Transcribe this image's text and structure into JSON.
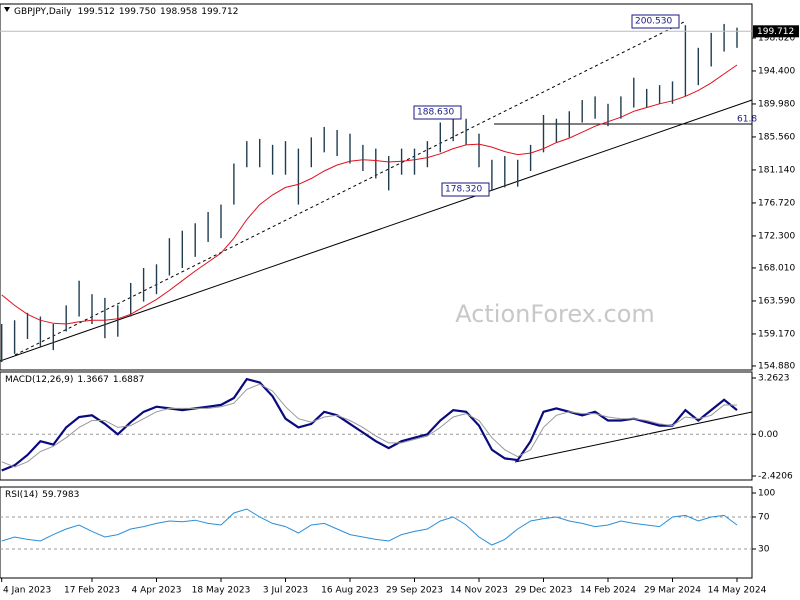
{
  "chart_data": [
    {
      "type": "ohlc",
      "title": "GBPJPY,Daily",
      "quote": [
        {
          "value": 199.512,
          "label": "199.512"
        },
        {
          "value": 199.75,
          "label": "199.750"
        },
        {
          "value": 198.958,
          "label": "198.958"
        },
        {
          "value": 199.712,
          "label": "199.712"
        }
      ],
      "categories": [
        "4 Jan 2023",
        null,
        null,
        null,
        null,
        null,
        null,
        "17 Feb 2023",
        null,
        null,
        null,
        null,
        "4 Apr 2023",
        null,
        null,
        null,
        null,
        "18 May 2023",
        null,
        null,
        null,
        null,
        "3 Jul 2023",
        null,
        null,
        null,
        null,
        "16 Aug 2023",
        null,
        null,
        null,
        null,
        "29 Sep 2023",
        null,
        null,
        null,
        null,
        "14 Nov 2023",
        null,
        null,
        null,
        null,
        "29 Dec 2023",
        null,
        null,
        null,
        null,
        "14 Feb 2024",
        null,
        null,
        null,
        null,
        "29 Mar 2024",
        null,
        null,
        null,
        null,
        "14 May 2024"
      ],
      "high": [
        160.5,
        161.0,
        162.0,
        161.5,
        160.5,
        163.0,
        166.3,
        164.5,
        164.0,
        163.0,
        166.0,
        168.0,
        168.5,
        172.0,
        173.0,
        174.0,
        175.5,
        176.5,
        182.0,
        185.0,
        185.3,
        184.5,
        185.0,
        184.0,
        185.5,
        186.9,
        186.5,
        186.0,
        184.5,
        184.0,
        183.0,
        184.0,
        184.0,
        185.0,
        187.5,
        188.63,
        188.0,
        186.0,
        182.5,
        183.0,
        182.5,
        184.5,
        188.5,
        188.0,
        189.0,
        190.5,
        191.0,
        190.0,
        191.0,
        193.5,
        192.0,
        192.5,
        193.0,
        200.53,
        197.5,
        199.5,
        200.7,
        200.2
      ],
      "low": [
        155.4,
        156.5,
        158.5,
        157.5,
        157.0,
        159.5,
        161.5,
        160.5,
        158.6,
        158.8,
        161.5,
        163.5,
        164.5,
        167.0,
        168.0,
        169.5,
        171.5,
        172.0,
        176.5,
        181.5,
        181.5,
        180.5,
        180.5,
        176.5,
        181.5,
        183.5,
        183.0,
        182.0,
        181.0,
        180.0,
        178.4,
        180.5,
        180.5,
        181.5,
        183.5,
        185.0,
        184.5,
        181.5,
        178.32,
        178.8,
        178.9,
        181.0,
        183.5,
        184.8,
        185.5,
        187.5,
        188.0,
        187.0,
        188.0,
        189.5,
        189.5,
        190.0,
        190.0,
        191.0,
        192.5,
        195.0,
        197.0,
        197.5
      ],
      "color": "#1f3d4f",
      "ma": {
        "color": "#e0101e",
        "values": [
          164.4,
          163.0,
          161.8,
          161.0,
          160.6,
          160.5,
          160.8,
          161.0,
          161.0,
          161.2,
          161.8,
          162.8,
          163.8,
          165.0,
          166.3,
          167.6,
          168.8,
          170.0,
          172.0,
          174.5,
          176.5,
          177.8,
          178.8,
          179.2,
          180.0,
          181.0,
          181.8,
          182.3,
          182.5,
          182.4,
          182.2,
          182.3,
          182.5,
          182.8,
          183.3,
          184.0,
          184.5,
          184.6,
          184.2,
          183.6,
          183.2,
          183.4,
          184.0,
          184.8,
          185.4,
          186.2,
          187.0,
          187.6,
          188.2,
          189.0,
          189.5,
          190.0,
          190.4,
          191.0,
          191.8,
          192.8,
          194.0,
          195.2
        ]
      },
      "annotations": [
        "200.530",
        "188.630",
        "178.320",
        "61.8"
      ],
      "watermark": "ActionForex.com",
      "ylim": [
        154.34,
        203.37
      ],
      "yticks": [
        {
          "value": 198.82,
          "label": "198.820"
        },
        {
          "value": 194.4,
          "label": "194.400"
        },
        {
          "value": 189.98,
          "label": "189.980"
        },
        {
          "value": 185.56,
          "label": "185.560"
        },
        {
          "value": 181.14,
          "label": "181.140"
        },
        {
          "value": 176.72,
          "label": "176.720"
        },
        {
          "value": 172.3,
          "label": "172.300"
        },
        {
          "value": 168.01,
          "label": "168.010"
        },
        {
          "value": 163.59,
          "label": "163.590"
        },
        {
          "value": 159.17,
          "label": "159.170"
        },
        {
          "value": 154.88,
          "label": "154.880"
        }
      ]
    },
    {
      "type": "macd",
      "title": "MACD(12,26,9)",
      "readout": [
        1.3667,
        1.6887
      ],
      "series": [
        {
          "color": "#0a0a80",
          "values": [
            -2.1,
            -1.8,
            -1.2,
            -0.4,
            -0.6,
            0.4,
            1.0,
            1.1,
            0.6,
            0.0,
            0.7,
            1.3,
            1.6,
            1.5,
            1.4,
            1.5,
            1.6,
            1.7,
            2.1,
            3.2,
            3.0,
            2.2,
            0.9,
            0.4,
            0.6,
            1.3,
            1.1,
            0.6,
            0.1,
            -0.4,
            -0.8,
            -0.4,
            -0.2,
            0.0,
            0.8,
            1.4,
            1.3,
            0.5,
            -0.9,
            -1.4,
            -1.5,
            -0.4,
            1.3,
            1.5,
            1.3,
            1.1,
            1.3,
            0.8,
            0.8,
            0.9,
            0.7,
            0.5,
            0.5,
            1.4,
            0.8,
            1.4,
            2.0,
            1.4
          ]
        },
        {
          "color": "#999999",
          "values": [
            -1.6,
            -1.9,
            -1.6,
            -1.0,
            -0.7,
            -0.2,
            0.4,
            0.8,
            0.8,
            0.4,
            0.5,
            0.9,
            1.3,
            1.5,
            1.5,
            1.5,
            1.5,
            1.6,
            1.8,
            2.6,
            2.9,
            2.5,
            1.6,
            0.9,
            0.7,
            1.0,
            1.1,
            0.8,
            0.4,
            -0.1,
            -0.5,
            -0.5,
            -0.3,
            -0.1,
            0.4,
            1.0,
            1.2,
            0.8,
            -0.2,
            -0.9,
            -1.3,
            -0.9,
            0.4,
            1.1,
            1.3,
            1.2,
            1.2,
            1.0,
            0.9,
            0.9,
            0.8,
            0.6,
            0.5,
            1.0,
            0.9,
            1.1,
            1.7,
            1.69
          ]
        }
      ],
      "ylim": [
        -2.4206,
        3.2623
      ],
      "yticks": [
        3.2623,
        {
          "value": 0,
          "label": "0.00"
        },
        -2.4206
      ]
    },
    {
      "type": "rsi",
      "title": "RSI(14)",
      "readout": 59.7983,
      "color": "#2a8fd8",
      "values": [
        40,
        45,
        42,
        40,
        48,
        55,
        60,
        52,
        45,
        48,
        55,
        58,
        62,
        65,
        64,
        66,
        62,
        60,
        75,
        80,
        70,
        62,
        58,
        50,
        60,
        62,
        55,
        48,
        45,
        42,
        40,
        48,
        52,
        55,
        65,
        70,
        60,
        45,
        35,
        42,
        55,
        65,
        68,
        70,
        65,
        62,
        58,
        60,
        65,
        62,
        60,
        58,
        70,
        72,
        65,
        70,
        72,
        60
      ],
      "ylim": [
        0,
        100
      ],
      "yticks": [
        100,
        70,
        30
      ]
    }
  ]
}
